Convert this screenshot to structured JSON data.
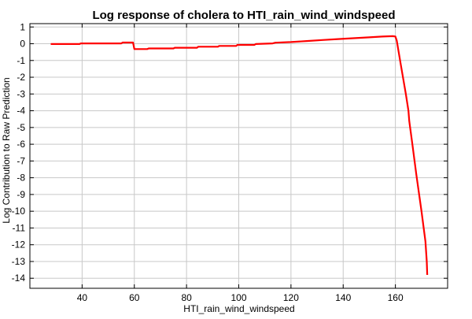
{
  "chart_data": {
    "type": "line",
    "title": "Log response of cholera to HTI_rain_wind_windspeed",
    "xlabel": "HTI_rain_wind_windspeed",
    "ylabel": "Log Contribution to Raw Prediction",
    "xlim": [
      20,
      180
    ],
    "ylim": [
      -14.6,
      1.2
    ],
    "x_ticks": [
      40,
      60,
      80,
      100,
      120,
      140,
      160
    ],
    "y_ticks": [
      1,
      0,
      -1,
      -2,
      -3,
      -4,
      -5,
      -6,
      -7,
      -8,
      -9,
      -10,
      -11,
      -12,
      -13,
      -14
    ],
    "grid": true,
    "series": [
      {
        "color": "#ff0000",
        "points": [
          [
            28,
            -0.02
          ],
          [
            39,
            -0.02
          ],
          [
            39.5,
            0.02
          ],
          [
            55,
            0.02
          ],
          [
            55.5,
            0.07
          ],
          [
            59.5,
            0.07
          ],
          [
            60,
            -0.32
          ],
          [
            65,
            -0.32
          ],
          [
            65.5,
            -0.28
          ],
          [
            75,
            -0.28
          ],
          [
            75.5,
            -0.24
          ],
          [
            84,
            -0.24
          ],
          [
            84.5,
            -0.18
          ],
          [
            92,
            -0.18
          ],
          [
            92.5,
            -0.13
          ],
          [
            99,
            -0.13
          ],
          [
            99.5,
            -0.07
          ],
          [
            106,
            -0.07
          ],
          [
            106.5,
            -0.02
          ],
          [
            113,
            0.02
          ],
          [
            114,
            0.06
          ],
          [
            120,
            0.1
          ],
          [
            126,
            0.16
          ],
          [
            132,
            0.22
          ],
          [
            138,
            0.28
          ],
          [
            144,
            0.33
          ],
          [
            150,
            0.38
          ],
          [
            155,
            0.43
          ],
          [
            159,
            0.45
          ],
          [
            160,
            0.43
          ],
          [
            160.5,
            0.2
          ],
          [
            162,
            -1.2
          ],
          [
            164,
            -3.0
          ],
          [
            165,
            -4.0
          ],
          [
            165.3,
            -4.6
          ],
          [
            166.5,
            -6.0
          ],
          [
            168,
            -7.8
          ],
          [
            170,
            -10.0
          ],
          [
            171.5,
            -11.8
          ],
          [
            172,
            -13.0
          ],
          [
            172.2,
            -13.8
          ]
        ]
      }
    ]
  }
}
